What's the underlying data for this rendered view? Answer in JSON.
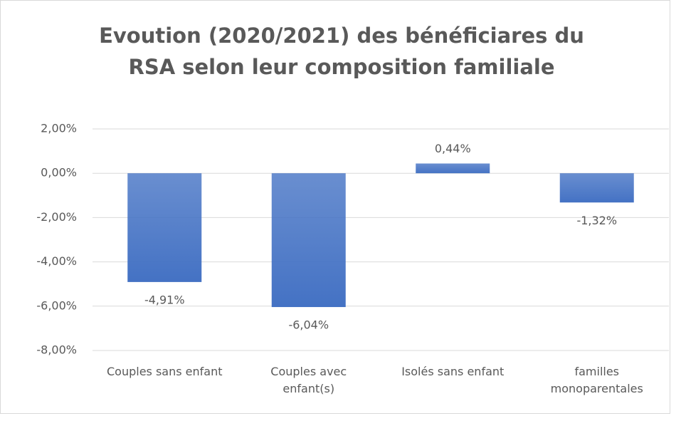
{
  "chart_data": {
    "type": "bar",
    "title": "Evoution (2020/2021) des bénéficiares du RSA selon leur composition familiale",
    "categories": [
      "Couples sans enfant",
      "Couples avec enfant(s)",
      "Isolés sans enfant",
      "familles monoparentales"
    ],
    "values": [
      -4.91,
      -6.04,
      0.44,
      -1.32
    ],
    "value_labels": [
      "-4,91%",
      "-6,04%",
      "0,44%",
      "-1,32%"
    ],
    "color": "#4472c4",
    "ylim": [
      -8,
      2
    ],
    "yticks": [
      {
        "value": -8,
        "label": "-8,00%"
      },
      {
        "value": -6,
        "label": "-6,00%"
      },
      {
        "value": -4,
        "label": "-4,00%"
      },
      {
        "value": -2,
        "label": "-2,00%"
      },
      {
        "value": 0,
        "label": "0,00%"
      },
      {
        "value": 2,
        "label": "2,00%"
      }
    ],
    "grid": true
  }
}
